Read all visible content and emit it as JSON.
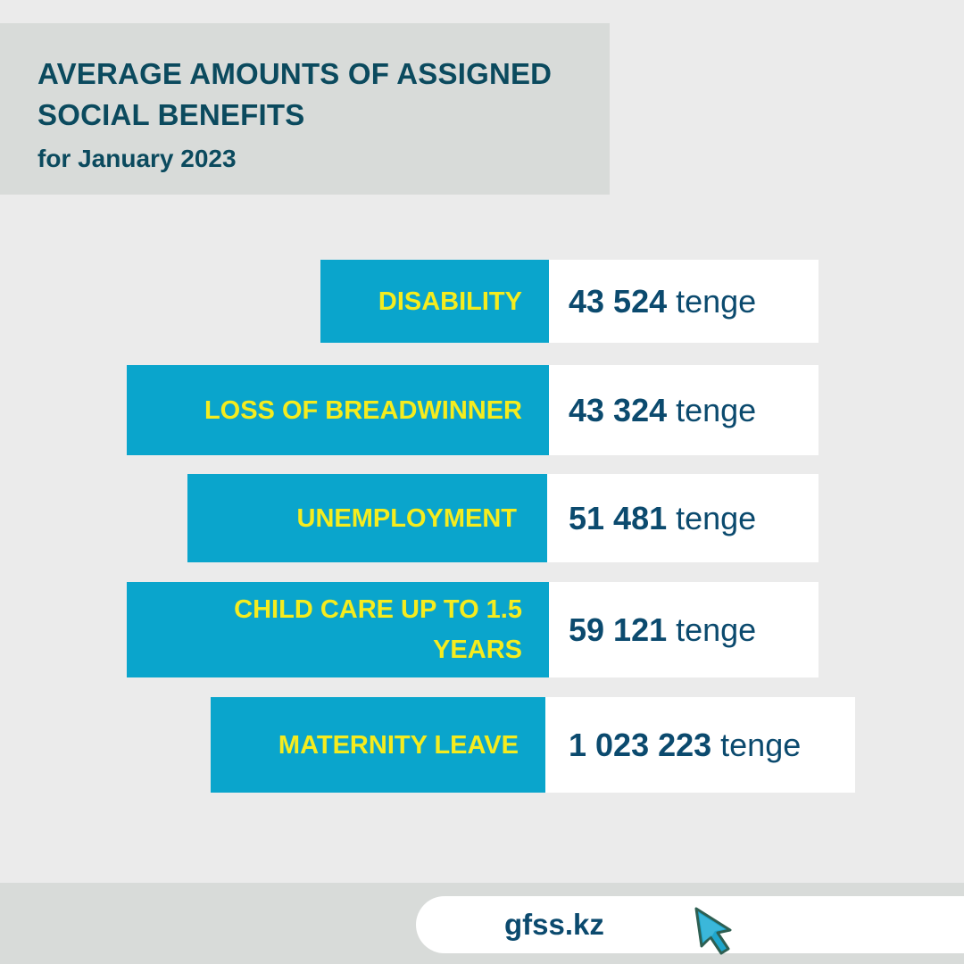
{
  "header": {
    "title": "AVERAGE AMOUNTS OF ASSIGNED SOCIAL BENEFITS",
    "subtitle": "for January 2023"
  },
  "benefits": [
    {
      "label": "DISABILITY",
      "amount": "43 524",
      "unit": "tenge"
    },
    {
      "label": "LOSS OF BREADWINNER",
      "amount": "43 324",
      "unit": "tenge"
    },
    {
      "label": "UNEMPLOYMENT",
      "amount": "51 481",
      "unit": "tenge"
    },
    {
      "label": "CHILD CARE UP TO 1.5 YEARS",
      "amount": "59 121",
      "unit": "tenge"
    },
    {
      "label": "MATERNITY LEAVE",
      "amount": "1 023 223",
      "unit": "tenge"
    }
  ],
  "footer": {
    "url": "gfss.kz",
    "cursor_icon": "cursor-arrow-icon"
  },
  "colors": {
    "background": "#ebebeb",
    "header_box": "#d8dbd9",
    "label_box": "#0aa5cc",
    "label_text": "#f5ec1e",
    "dark_text": "#0b4a6e",
    "value_box": "#ffffff"
  }
}
